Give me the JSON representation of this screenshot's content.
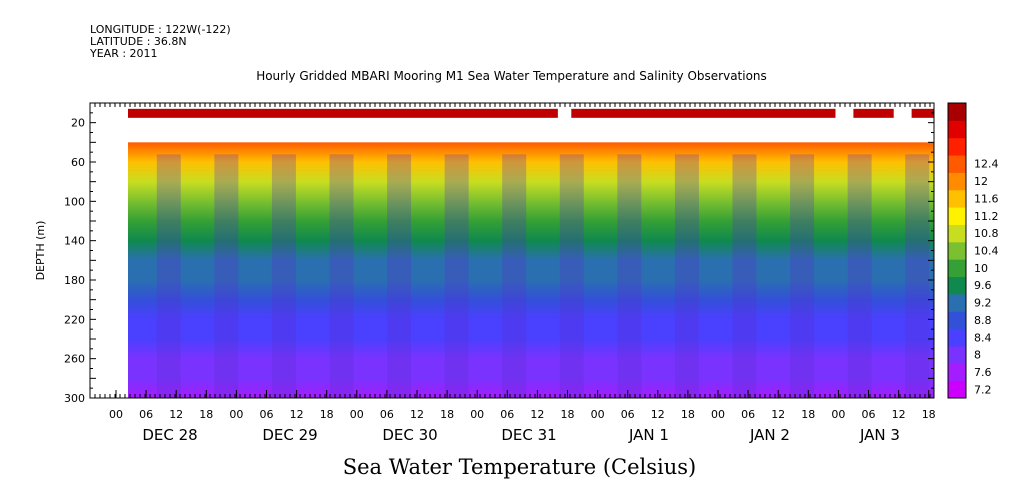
{
  "meta": {
    "longitude": "LONGITUDE : 122W(-122)",
    "latitude": "LATITUDE : 36.8N",
    "year": "YEAR : 2011"
  },
  "chart_data": {
    "type": "heatmap",
    "title": "Hourly Gridded MBARI Mooring M1 Sea Water Temperature and Salinity Observations",
    "subtitle": "Sea Water Temperature (Celsius)",
    "ylabel": "DEPTH (m)",
    "ylim": [
      300,
      0
    ],
    "y_inverted": true,
    "y_ticks": [
      20,
      60,
      100,
      140,
      180,
      220,
      260,
      300
    ],
    "x_hour_ticks": [
      "00",
      "06",
      "12",
      "18",
      "00",
      "06",
      "12",
      "18",
      "00",
      "06",
      "12",
      "18",
      "00",
      "06",
      "12",
      "18",
      "00",
      "06",
      "12",
      "18",
      "00",
      "06",
      "12",
      "18",
      "00",
      "06",
      "12",
      "18"
    ],
    "x_day_labels": [
      "DEC 28",
      "DEC 29",
      "DEC 30",
      "DEC 31",
      "JAN  1",
      "JAN  2",
      "JAN  3"
    ],
    "colorbar": {
      "levels": [
        7.2,
        7.6,
        8,
        8.4,
        8.8,
        9.2,
        9.6,
        10,
        10.4,
        10.8,
        11.2,
        11.6,
        12,
        12.4
      ],
      "colors": [
        "#cc00ff",
        "#a31dff",
        "#7a33ff",
        "#4a40ff",
        "#3350d9",
        "#2a70b0",
        "#10894f",
        "#35a035",
        "#7ac030",
        "#c8dd20",
        "#fff200",
        "#ffc000",
        "#ff8c00",
        "#ff5a00",
        "#ff2000",
        "#e00000",
        "#a80000"
      ]
    },
    "data_depth_start_m": 40,
    "surface_bar_depth_m": 10,
    "profile": [
      {
        "depth": 40,
        "temp": 12.0
      },
      {
        "depth": 60,
        "temp": 11.3
      },
      {
        "depth": 80,
        "temp": 10.6
      },
      {
        "depth": 100,
        "temp": 10.0
      },
      {
        "depth": 120,
        "temp": 9.6
      },
      {
        "depth": 140,
        "temp": 9.3
      },
      {
        "depth": 160,
        "temp": 9.0
      },
      {
        "depth": 180,
        "temp": 8.8
      },
      {
        "depth": 200,
        "temp": 8.55
      },
      {
        "depth": 220,
        "temp": 8.3
      },
      {
        "depth": 240,
        "temp": 8.1
      },
      {
        "depth": 260,
        "temp": 7.9
      },
      {
        "depth": 280,
        "temp": 7.65
      },
      {
        "depth": 300,
        "temp": 7.35
      }
    ]
  }
}
